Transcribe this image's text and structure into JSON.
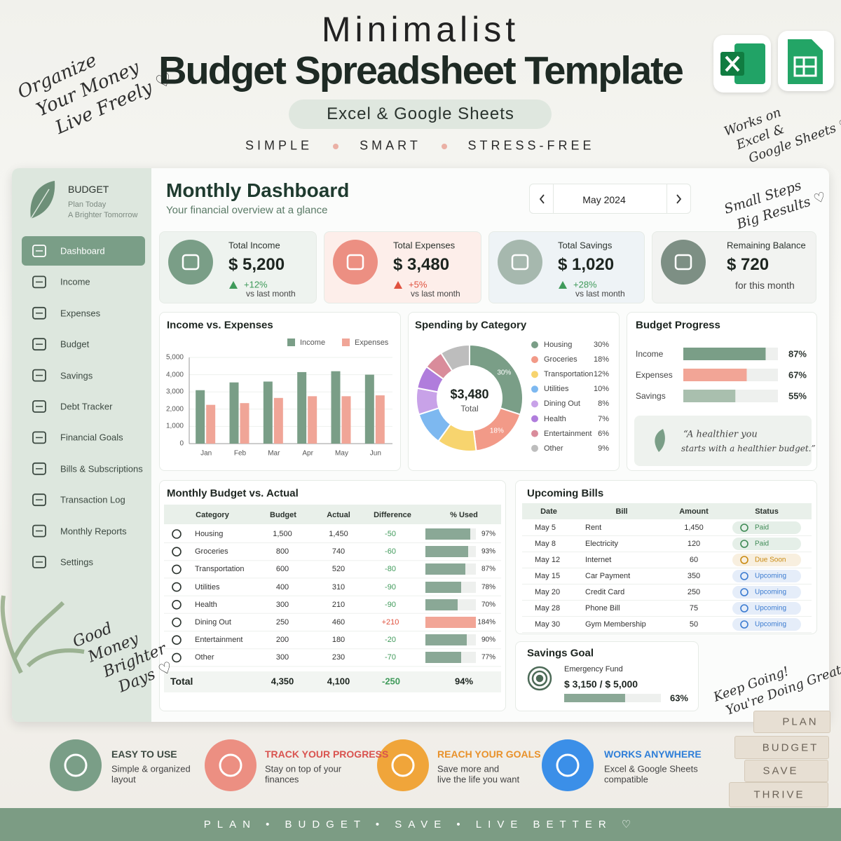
{
  "header": {
    "kicker": "Minimalist",
    "title": "Budget Spreadsheet Template",
    "badge": "Excel & Google Sheets",
    "taglines": [
      "SIMPLE",
      "SMART",
      "STRESS-FREE"
    ]
  },
  "notes": {
    "top_left": [
      "Organize",
      "Your Money",
      "Live Freely ♡"
    ],
    "top_right": [
      "Works on",
      "Excel &",
      "Google Sheets ♡"
    ],
    "dashboard": [
      "Small Steps",
      "Big Results ♡"
    ],
    "sidebar": [
      "Good",
      "Money",
      "Brighter",
      "Days ♡"
    ],
    "bottom": [
      "Keep Going!",
      "You're Doing Great ♡"
    ]
  },
  "sidebar": {
    "brand": "BUDGET",
    "slogan": [
      "Plan Today",
      "A Brighter Tomorrow"
    ],
    "menu": [
      "Dashboard",
      "Income",
      "Expenses",
      "Budget",
      "Savings",
      "Debt Tracker",
      "Financial Goals",
      "Bills & Subscriptions",
      "Transaction Log",
      "Monthly Reports",
      "Settings"
    ],
    "active": 0
  },
  "dashboard": {
    "title": "Monthly Dashboard",
    "subtitle": "Your financial overview at a glance",
    "month": "May 2024"
  },
  "kpis": [
    {
      "label": "Total Income",
      "value": "$ 5,200",
      "change": "+12%",
      "change_color": "#3f9a5a",
      "note": "vs last month",
      "color": "#7a9e87",
      "bg": "#eef3ef"
    },
    {
      "label": "Total Expenses",
      "value": "$ 3,480",
      "change": "+5%",
      "change_color": "#e0523f",
      "note": "vs last month",
      "color": "#ec8f82",
      "bg": "#fdeeea"
    },
    {
      "label": "Total Savings",
      "value": "$ 1,020",
      "change": "+28%",
      "change_color": "#3f9a5a",
      "note": "vs last month",
      "color": "#a6b8ae",
      "bg": "#eef3f6"
    },
    {
      "label": "Remaining Balance",
      "value": "$ 720",
      "note": "for this month",
      "color": "#7d8f84",
      "bg": "#f2f3f1"
    }
  ],
  "income_vs_expenses": {
    "type": "bar",
    "title": "Income vs. Expenses",
    "categories": [
      "Jan",
      "Feb",
      "Mar",
      "Apr",
      "May",
      "Jun"
    ],
    "series": [
      {
        "name": "Income",
        "color": "#7a9e87",
        "values": [
          3100,
          3550,
          3600,
          4150,
          4200,
          4000
        ]
      },
      {
        "name": "Expenses",
        "color": "#f0a597",
        "values": [
          2250,
          2350,
          2650,
          2750,
          2750,
          2800
        ]
      }
    ],
    "ylim": [
      0,
      5000
    ],
    "yticks": [
      0,
      {
        "value": 1000,
        "label": "1,000"
      },
      {
        "value": 2000,
        "label": "2,000"
      },
      {
        "value": 3000,
        "label": "3,000"
      },
      {
        "value": 4000,
        "label": "4,000"
      },
      {
        "value": 5000,
        "label": "5,000"
      }
    ]
  },
  "spending_by_category": {
    "type": "pie",
    "title": "Spending by Category",
    "center_value": "$3,480",
    "center_label": "Total",
    "categories": [
      "Housing",
      "Groceries",
      "Transportation",
      "Utilities",
      "Dining Out",
      "Health",
      "Entertainment",
      "Other"
    ],
    "values": [
      30,
      18,
      12,
      10,
      8,
      7,
      6,
      9
    ],
    "value_labels": [
      "30%",
      "18%",
      "12%",
      "10%",
      "8%",
      "7%",
      "6%",
      "9%"
    ],
    "colors": [
      "#7a9e87",
      "#f29a88",
      "#f7d46e",
      "#7db8f0",
      "#c8a2e8",
      "#b07ddc",
      "#d98c9b",
      "#bdbdbd"
    ]
  },
  "budget_progress": {
    "title": "Budget Progress",
    "items": [
      {
        "name": "Income",
        "value": 87,
        "label": "87%",
        "color": "#7a9e87"
      },
      {
        "name": "Expenses",
        "value": 67,
        "label": "67%",
        "color": "#f2a596"
      },
      {
        "name": "Savings",
        "value": 55,
        "label": "55%",
        "color": "#a9bfae"
      }
    ],
    "quote": [
      "“A healthier you",
      "starts with a healthier budget.”"
    ]
  },
  "monthly_budget": {
    "title": "Monthly Budget vs. Actual",
    "columns": [
      "Category",
      "Budget",
      "Actual",
      "Difference",
      "% Used"
    ],
    "rows": [
      {
        "category": "Housing",
        "budget": "1,500",
        "actual": "1,450",
        "difference": "-50",
        "used": 97,
        "used_label": "97%"
      },
      {
        "category": "Groceries",
        "budget": "800",
        "actual": "740",
        "difference": "-60",
        "used": 93,
        "used_label": "93%"
      },
      {
        "category": "Transportation",
        "budget": "600",
        "actual": "520",
        "difference": "-80",
        "used": 87,
        "used_label": "87%"
      },
      {
        "category": "Utilities",
        "budget": "400",
        "actual": "310",
        "difference": "-90",
        "used": 78,
        "used_label": "78%"
      },
      {
        "category": "Health",
        "budget": "300",
        "actual": "210",
        "difference": "-90",
        "used": 70,
        "used_label": "70%"
      },
      {
        "category": "Dining Out",
        "budget": "250",
        "actual": "460",
        "difference": "+210",
        "used": 184,
        "used_label": "184%"
      },
      {
        "category": "Entertainment",
        "budget": "200",
        "actual": "180",
        "difference": "-20",
        "used": 90,
        "used_label": "90%"
      },
      {
        "category": "Other",
        "budget": "300",
        "actual": "230",
        "difference": "-70",
        "used": 77,
        "used_label": "77%"
      }
    ],
    "total": {
      "label": "Total",
      "budget": "4,350",
      "actual": "4,100",
      "difference": "-250",
      "used": "94%"
    }
  },
  "upcoming_bills": {
    "title": "Upcoming Bills",
    "columns": [
      "Date",
      "Bill",
      "Amount",
      "Status"
    ],
    "rows": [
      {
        "date": "May 5",
        "bill": "Rent",
        "amount": "1,450",
        "status": "Paid",
        "status_color": "#3f8a55"
      },
      {
        "date": "May 8",
        "bill": "Electricity",
        "amount": "120",
        "status": "Paid",
        "status_color": "#3f8a55"
      },
      {
        "date": "May 12",
        "bill": "Internet",
        "amount": "60",
        "status": "Due Soon",
        "status_color": "#c98a12"
      },
      {
        "date": "May 15",
        "bill": "Car Payment",
        "amount": "350",
        "status": "Upcoming",
        "status_color": "#3b7bd0"
      },
      {
        "date": "May 20",
        "bill": "Credit Card",
        "amount": "250",
        "status": "Upcoming",
        "status_color": "#3b7bd0"
      },
      {
        "date": "May 28",
        "bill": "Phone Bill",
        "amount": "75",
        "status": "Upcoming",
        "status_color": "#3b7bd0"
      },
      {
        "date": "May 30",
        "bill": "Gym Membership",
        "amount": "50",
        "status": "Upcoming",
        "status_color": "#3b7bd0"
      }
    ]
  },
  "savings_goal": {
    "title": "Savings Goal",
    "name": "Emergency Fund",
    "amount": "$ 3,150 / $ 5,000",
    "progress": 63,
    "progress_label": "63%"
  },
  "features": [
    {
      "title": "EASY TO USE",
      "lines": [
        "Simple & organized",
        "layout"
      ],
      "color": "#7a9e87",
      "title_color": "#3d4a42"
    },
    {
      "title": "TRACK YOUR PROGRESS",
      "lines": [
        "Stay on top of your",
        "finances"
      ],
      "color": "#ec8f82",
      "title_color": "#d9534f"
    },
    {
      "title": "REACH YOUR GOALS",
      "lines": [
        "Save more and",
        "live the life you want"
      ],
      "color": "#f0a53a",
      "title_color": "#e8912a"
    },
    {
      "title": "WORKS ANYWHERE",
      "lines": [
        "Excel & Google Sheets",
        "compatible"
      ],
      "color": "#3b8fe8",
      "title_color": "#2f7fd8"
    }
  ],
  "books": [
    "PLAN",
    "BUDGET",
    "SAVE",
    "THRIVE"
  ],
  "footer": "PLAN • BUDGET • SAVE • LIVE BETTER ♡"
}
